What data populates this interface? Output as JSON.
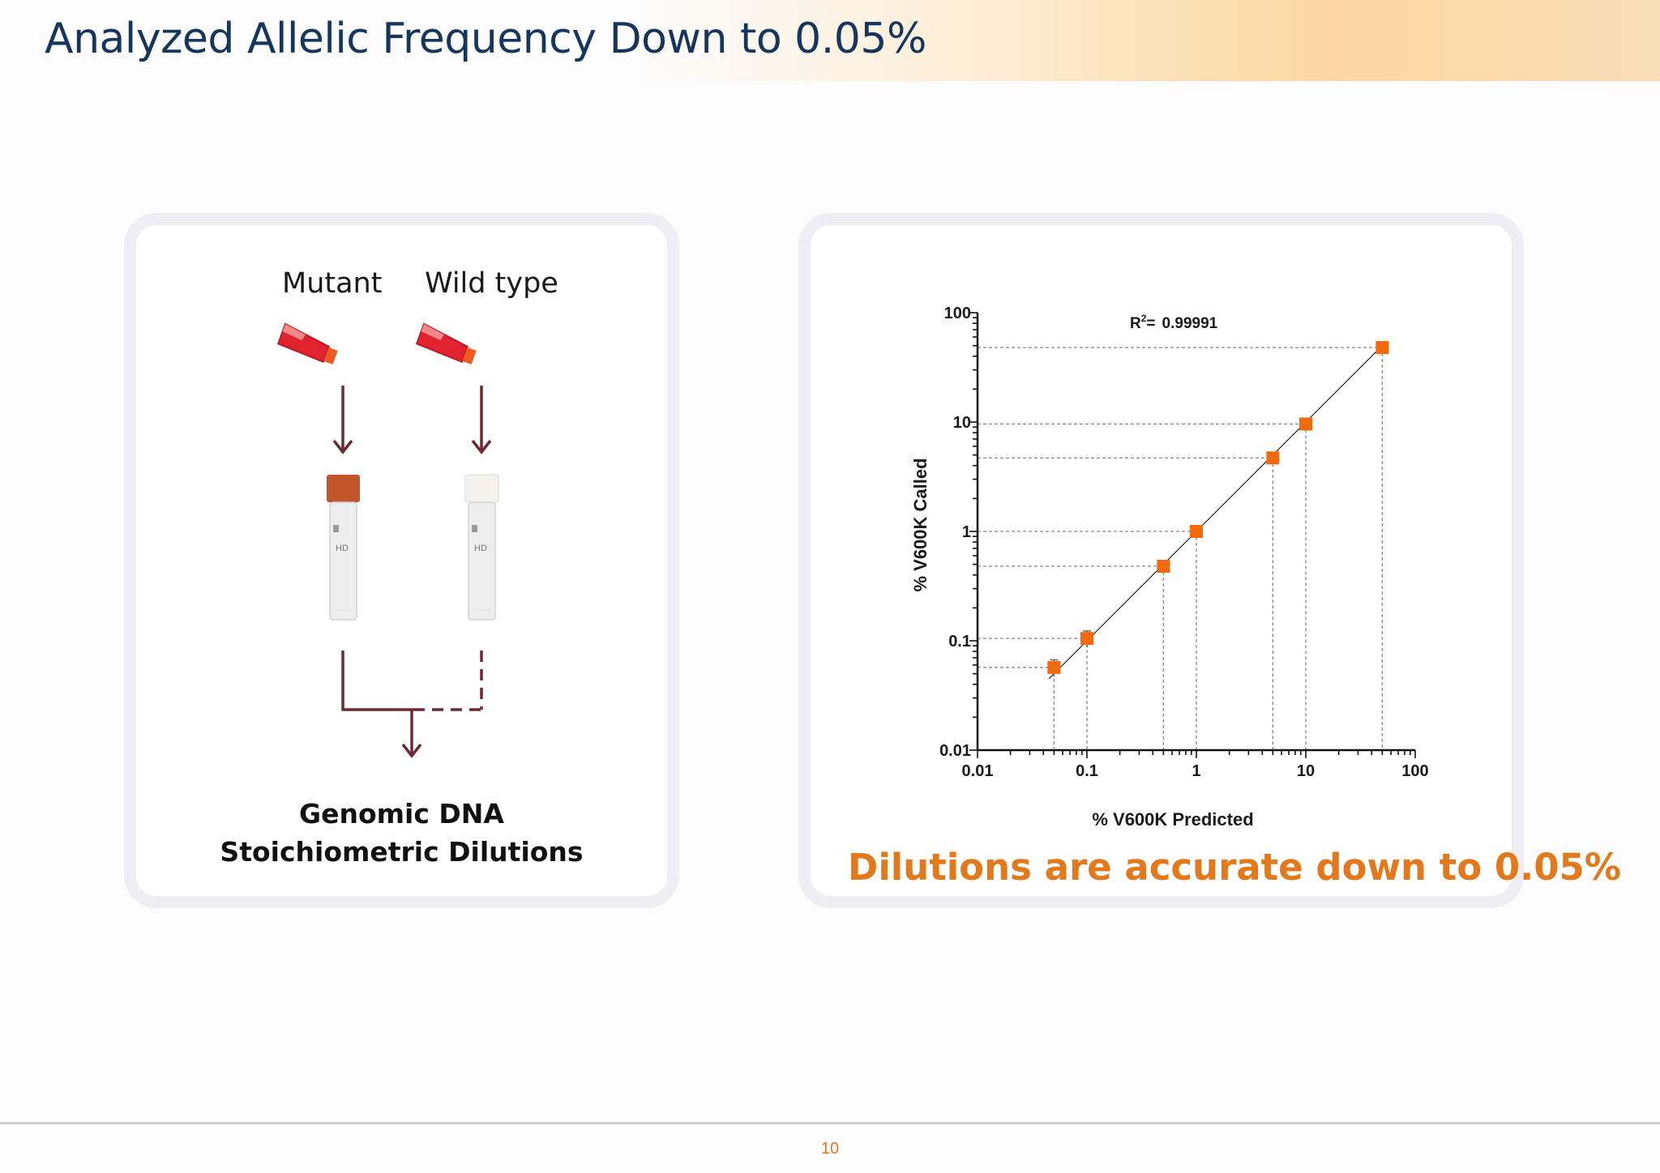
{
  "slide": {
    "title": "Analyzed Allelic Frequency Down to 0.05%",
    "page_number": "10"
  },
  "workflow": {
    "mutant_label": "Mutant",
    "wildtype_label": "Wild type",
    "caption_line1": "Genomic DNA",
    "caption_line2": "Stoichiometric Dilutions",
    "tube_code": "HD",
    "colors": {
      "arrow": "#6b2a34",
      "mutant_cap": "#c0562a",
      "wildtype_cap": "#f4f2ee",
      "flask": "#e0232e"
    }
  },
  "chart_data": {
    "type": "scatter",
    "xlabel": "% V600K Predicted",
    "ylabel": "% V600K Called",
    "x_scale": "log",
    "y_scale": "log",
    "xlim": [
      0.01,
      100
    ],
    "ylim": [
      0.01,
      100
    ],
    "x_ticks": [
      "0.01",
      "0.1",
      "1",
      "10",
      "100"
    ],
    "y_ticks": [
      "100",
      "10",
      "1",
      "0.1",
      "0.01"
    ],
    "annotation": {
      "r2_label": "R",
      "r2_sup": "2",
      "r2_eq": "=",
      "r2_value": "0.99991"
    },
    "series": [
      {
        "x": [
          0.05,
          0.1,
          0.5,
          1,
          5,
          10,
          50
        ],
        "y": [
          0.057,
          0.105,
          0.48,
          1.0,
          4.7,
          9.6,
          48
        ],
        "y_err": [
          0.01,
          0.018,
          0.02,
          0.03,
          0.1,
          0.2,
          0.5
        ],
        "color": "#f26a10"
      }
    ],
    "fit_line": true,
    "guide_lines": "dashed",
    "grid": false
  },
  "note": {
    "text": "Dilutions are accurate down to 0.05%",
    "color": "#e27a1d"
  }
}
